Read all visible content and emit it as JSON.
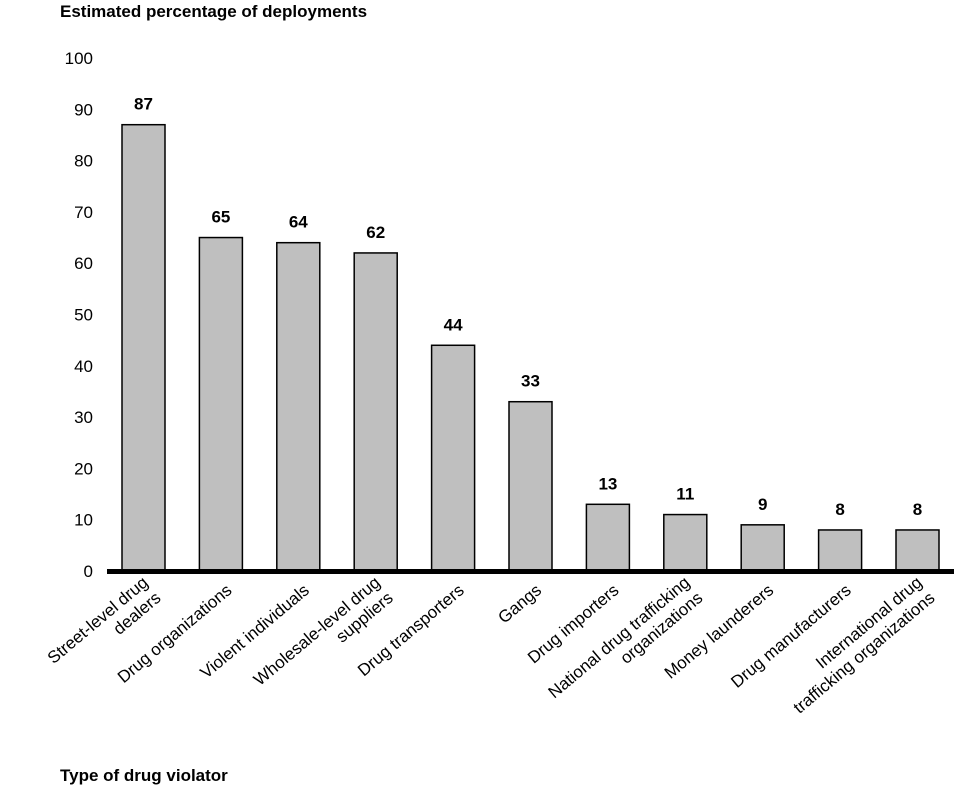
{
  "chart_data": {
    "type": "bar",
    "ylabel": "Estimated percentage of deployments",
    "xlabel": "Type of drug violator",
    "ylim": [
      0,
      100
    ],
    "yticks": [
      0,
      10,
      20,
      30,
      40,
      50,
      60,
      70,
      80,
      90,
      100
    ],
    "grid": false,
    "categories": [
      [
        "Street-level drug",
        "dealers"
      ],
      [
        "Drug organizations"
      ],
      [
        "Violent individuals"
      ],
      [
        "Wholesale-level drug",
        "suppliers"
      ],
      [
        "Drug transporters"
      ],
      [
        "Gangs"
      ],
      [
        "Drug importers"
      ],
      [
        "National drug trafficking",
        "organizations"
      ],
      [
        "Money launderers"
      ],
      [
        "Drug manufacturers"
      ],
      [
        "International drug",
        "trafficking organizations"
      ]
    ],
    "values": [
      87,
      65,
      64,
      62,
      44,
      33,
      13,
      11,
      9,
      8,
      8
    ],
    "bar_color": "#bfbfbf"
  }
}
